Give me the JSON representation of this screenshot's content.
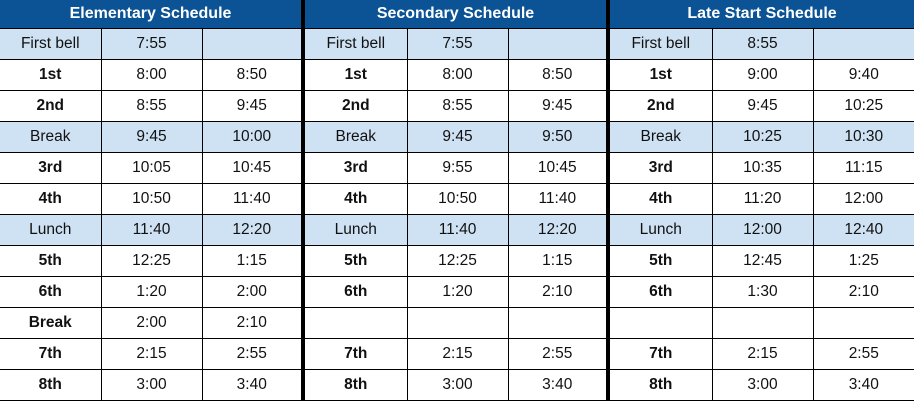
{
  "colors": {
    "header": "#0b5394",
    "highlight_row": "#cfe2f3"
  },
  "sections": [
    {
      "title": "Elementary Schedule",
      "rows": [
        {
          "label": "First bell",
          "start": "7:55",
          "end": "",
          "highlight": true
        },
        {
          "label": "1st",
          "start": "8:00",
          "end": "8:50",
          "highlight": false
        },
        {
          "label": "2nd",
          "start": "8:55",
          "end": "9:45",
          "highlight": false
        },
        {
          "label": "Break",
          "start": "9:45",
          "end": "10:00",
          "highlight": true
        },
        {
          "label": "3rd",
          "start": "10:05",
          "end": "10:45",
          "highlight": false
        },
        {
          "label": "4th",
          "start": "10:50",
          "end": "11:40",
          "highlight": false
        },
        {
          "label": "Lunch",
          "start": "11:40",
          "end": "12:20",
          "highlight": true
        },
        {
          "label": "5th",
          "start": "12:25",
          "end": "1:15",
          "highlight": false
        },
        {
          "label": "6th",
          "start": "1:20",
          "end": "2:00",
          "highlight": false
        },
        {
          "label": "Break",
          "start": "2:00",
          "end": "2:10",
          "highlight": false
        },
        {
          "label": "7th",
          "start": "2:15",
          "end": "2:55",
          "highlight": false
        },
        {
          "label": "8th",
          "start": "3:00",
          "end": "3:40",
          "highlight": false
        }
      ]
    },
    {
      "title": "Secondary Schedule",
      "rows": [
        {
          "label": "First bell",
          "start": "7:55",
          "end": "",
          "highlight": true
        },
        {
          "label": "1st",
          "start": "8:00",
          "end": "8:50",
          "highlight": false
        },
        {
          "label": "2nd",
          "start": "8:55",
          "end": "9:45",
          "highlight": false
        },
        {
          "label": "Break",
          "start": "9:45",
          "end": "9:50",
          "highlight": true
        },
        {
          "label": "3rd",
          "start": "9:55",
          "end": "10:45",
          "highlight": false
        },
        {
          "label": "4th",
          "start": "10:50",
          "end": "11:40",
          "highlight": false
        },
        {
          "label": "Lunch",
          "start": "11:40",
          "end": "12:20",
          "highlight": true
        },
        {
          "label": "5th",
          "start": "12:25",
          "end": "1:15",
          "highlight": false
        },
        {
          "label": "6th",
          "start": "1:20",
          "end": "2:10",
          "highlight": false
        },
        {
          "label": "",
          "start": "",
          "end": "",
          "highlight": false
        },
        {
          "label": "7th",
          "start": "2:15",
          "end": "2:55",
          "highlight": false
        },
        {
          "label": "8th",
          "start": "3:00",
          "end": "3:40",
          "highlight": false
        }
      ]
    },
    {
      "title": "Late Start Schedule",
      "rows": [
        {
          "label": "First bell",
          "start": "8:55",
          "end": "",
          "highlight": true
        },
        {
          "label": "1st",
          "start": "9:00",
          "end": "9:40",
          "highlight": false
        },
        {
          "label": "2nd",
          "start": "9:45",
          "end": "10:25",
          "highlight": false
        },
        {
          "label": "Break",
          "start": "10:25",
          "end": "10:30",
          "highlight": true
        },
        {
          "label": "3rd",
          "start": "10:35",
          "end": "11:15",
          "highlight": false
        },
        {
          "label": "4th",
          "start": "11:20",
          "end": "12:00",
          "highlight": false
        },
        {
          "label": "Lunch",
          "start": "12:00",
          "end": "12:40",
          "highlight": true
        },
        {
          "label": "5th",
          "start": "12:45",
          "end": "1:25",
          "highlight": false
        },
        {
          "label": "6th",
          "start": "1:30",
          "end": "2:10",
          "highlight": false
        },
        {
          "label": "",
          "start": "",
          "end": "",
          "highlight": false
        },
        {
          "label": "7th",
          "start": "2:15",
          "end": "2:55",
          "highlight": false
        },
        {
          "label": "8th",
          "start": "3:00",
          "end": "3:40",
          "highlight": false
        }
      ]
    }
  ]
}
